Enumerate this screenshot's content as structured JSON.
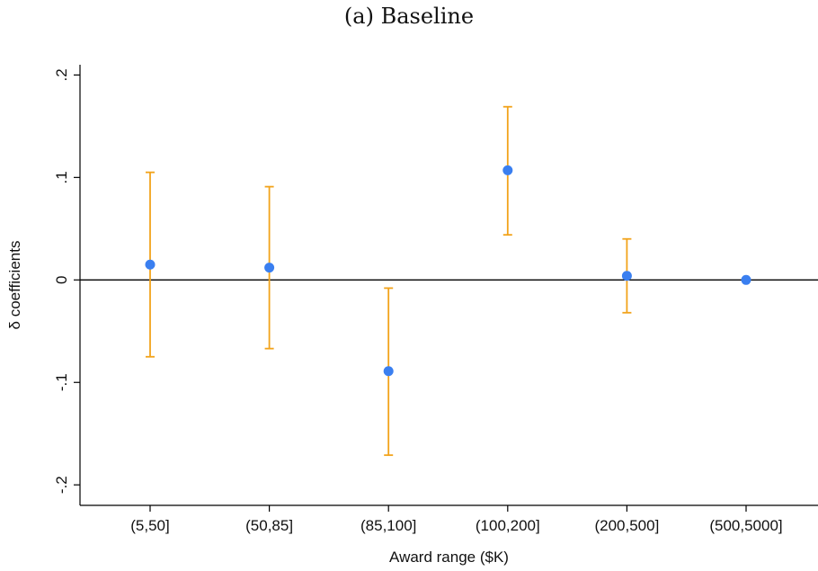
{
  "chart_data": {
    "type": "scatter",
    "title": "(a) Baseline",
    "xlabel": "Award range ($K)",
    "ylabel": "δ coefficients",
    "categories": [
      "(5,50]",
      "(50,85]",
      "(85,100]",
      "(100,200]",
      "(200,500]",
      "(500,5000]"
    ],
    "series": [
      {
        "values": [
          0.015,
          0.012,
          -0.089,
          0.107,
          0.004,
          0.0
        ],
        "ci_low": [
          -0.075,
          -0.067,
          -0.171,
          0.044,
          -0.032,
          null
        ],
        "ci_high": [
          0.105,
          0.091,
          -0.008,
          0.169,
          0.04,
          null
        ]
      }
    ],
    "ylim": [
      -0.22,
      0.21
    ],
    "yticks": [
      -0.2,
      -0.1,
      0,
      0.1,
      0.2
    ],
    "ytick_labels": [
      "-.2",
      "-.1",
      "0",
      ".1",
      ".2"
    ],
    "reference_line": 0,
    "grid": false,
    "colors": {
      "point": "#3a7ff0",
      "ci": "#f2a31b",
      "axis": "#000000",
      "reference": "#000000"
    }
  }
}
